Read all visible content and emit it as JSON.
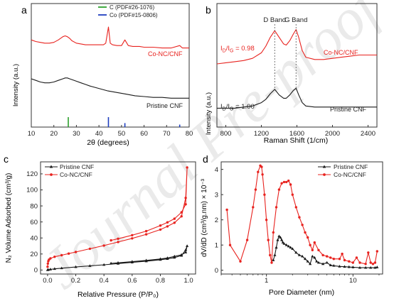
{
  "figure": {
    "watermark": "Journal Pre-proof"
  },
  "chart_data": [
    {
      "panel": "a",
      "type": "line",
      "xlabel": "2θ (degrees)",
      "ylabel": "Intensity (a.u.)",
      "xlim": [
        10,
        80
      ],
      "xticks": [
        10,
        20,
        30,
        40,
        50,
        60,
        70,
        80
      ],
      "y_ticks_shown": false,
      "legend": {
        "placement": "top-center",
        "entries": [
          {
            "label": "C  (PDF#26-1076)",
            "color": "#2ca02c"
          },
          {
            "label": "Co (PDF#15-0806)",
            "color": "#1f3fbf"
          }
        ]
      },
      "series": [
        {
          "name": "Co-NC/CNF",
          "color": "#e8231f",
          "x": [
            10,
            12,
            14,
            16,
            18,
            20,
            22,
            24,
            25,
            26,
            27,
            28,
            30,
            32,
            34,
            36,
            38,
            40,
            42,
            43,
            44.2,
            45,
            46,
            48,
            50,
            51.5,
            53,
            55,
            58,
            60,
            64,
            68,
            72,
            75.8,
            77,
            80
          ],
          "y": [
            0.84,
            0.82,
            0.81,
            0.8,
            0.8,
            0.81,
            0.84,
            0.88,
            0.89,
            0.88,
            0.86,
            0.83,
            0.8,
            0.79,
            0.78,
            0.78,
            0.78,
            0.78,
            0.78,
            0.8,
            1.0,
            0.8,
            0.78,
            0.77,
            0.77,
            0.84,
            0.77,
            0.76,
            0.76,
            0.75,
            0.75,
            0.74,
            0.74,
            0.77,
            0.74,
            0.74
          ]
        },
        {
          "name": "Pristine CNF",
          "color": "#1a1a1a",
          "x": [
            10,
            12,
            14,
            16,
            18,
            20,
            22,
            24,
            25,
            26,
            27,
            28,
            30,
            32,
            34,
            36,
            40,
            44,
            48,
            52,
            56,
            60,
            64,
            68,
            72,
            76,
            80
          ],
          "y": [
            0.36,
            0.34,
            0.32,
            0.31,
            0.31,
            0.32,
            0.34,
            0.36,
            0.37,
            0.37,
            0.36,
            0.35,
            0.33,
            0.31,
            0.29,
            0.27,
            0.24,
            0.21,
            0.19,
            0.17,
            0.15,
            0.14,
            0.13,
            0.13,
            0.12,
            0.12,
            0.12
          ]
        }
      ],
      "reference_lines": [
        {
          "name": "C",
          "color": "#2ca02c",
          "x": [
            26.4
          ],
          "height": [
            1.0
          ]
        },
        {
          "name": "Co",
          "color": "#1f3fbf",
          "x": [
            44.2,
            51.5,
            75.8
          ],
          "height": [
            1.0,
            0.4,
            0.25
          ]
        }
      ]
    },
    {
      "panel": "b",
      "type": "line",
      "xlabel": "Raman Shift (1/cm)",
      "ylabel": "Intensity (a.u.)",
      "xlim": [
        700,
        2500
      ],
      "xticks": [
        800,
        1200,
        1600,
        2000,
        2400
      ],
      "y_ticks_shown": false,
      "band_labels": [
        {
          "text": "D Band",
          "x": 1350
        },
        {
          "text": "G Band",
          "x": 1590
        }
      ],
      "ratios": [
        {
          "series": "Co-NC/CNF",
          "base": "I",
          "sub1": "D",
          "mid": "/I",
          "sub2": "G",
          "value": "= 0.98"
        },
        {
          "series": "Pristine CNF",
          "base": "I",
          "sub1": "D",
          "mid": "/I",
          "sub2": "G",
          "value": "= 1.00"
        }
      ],
      "series": [
        {
          "name": "Co-NC/CNF",
          "color": "#e8231f",
          "x": [
            700,
            800,
            900,
            1000,
            1100,
            1200,
            1250,
            1300,
            1350,
            1400,
            1450,
            1480,
            1520,
            1560,
            1590,
            1620,
            1660,
            1700,
            1800,
            1900,
            2000,
            2100,
            2200,
            2300,
            2400,
            2500
          ],
          "y": [
            0.5,
            0.51,
            0.52,
            0.53,
            0.55,
            0.6,
            0.66,
            0.74,
            0.8,
            0.74,
            0.68,
            0.67,
            0.71,
            0.77,
            0.81,
            0.74,
            0.62,
            0.56,
            0.54,
            0.54,
            0.55,
            0.56,
            0.57,
            0.58,
            0.58,
            0.58
          ]
        },
        {
          "name": "Pristine CNF",
          "color": "#1a1a1a",
          "x": [
            700,
            800,
            900,
            1000,
            1100,
            1200,
            1250,
            1300,
            1350,
            1400,
            1450,
            1480,
            1520,
            1560,
            1590,
            1620,
            1660,
            1700,
            1800,
            1900,
            2000,
            2100,
            2200,
            2300,
            2400,
            2500
          ],
          "y": [
            0.1,
            0.1,
            0.1,
            0.11,
            0.12,
            0.15,
            0.18,
            0.23,
            0.27,
            0.22,
            0.19,
            0.19,
            0.22,
            0.26,
            0.28,
            0.22,
            0.15,
            0.12,
            0.11,
            0.11,
            0.11,
            0.11,
            0.11,
            0.11,
            0.11,
            0.11
          ]
        }
      ]
    },
    {
      "panel": "c",
      "type": "line",
      "xlabel": "Relative Pressure (P/P₀)",
      "ylabel": "N₂ Volume Adsorbed (cm³/g)",
      "xlim": [
        -0.05,
        1.05
      ],
      "ylim": [
        -5,
        135
      ],
      "xticks": [
        0.0,
        0.2,
        0.4,
        0.6,
        0.8,
        1.0
      ],
      "yticks": [
        0,
        20,
        40,
        60,
        80,
        100,
        120
      ],
      "legend": {
        "placement": "top-left"
      },
      "series": [
        {
          "name": "Pristine CNF",
          "color": "#1a1a1a",
          "x": [
            0.0,
            0.005,
            0.02,
            0.05,
            0.1,
            0.2,
            0.3,
            0.4,
            0.5,
            0.6,
            0.7,
            0.8,
            0.85,
            0.9,
            0.95,
            0.98,
            0.99,
            0.98,
            0.95,
            0.9,
            0.85,
            0.8,
            0.7,
            0.6,
            0.5,
            0.45
          ],
          "y": [
            0,
            0.3,
            0.8,
            1.5,
            2.3,
            3.8,
            5.2,
            6.5,
            8.0,
            9.5,
            11.0,
            12.8,
            14.0,
            15.5,
            18.0,
            25.0,
            30.0,
            22.0,
            19.0,
            17.0,
            15.0,
            13.8,
            12.0,
            10.5,
            9.0,
            8.3
          ]
        },
        {
          "name": "Co-NC/CNF",
          "color": "#e8231f",
          "x": [
            0.0,
            0.002,
            0.005,
            0.01,
            0.02,
            0.05,
            0.1,
            0.15,
            0.2,
            0.3,
            0.4,
            0.5,
            0.6,
            0.7,
            0.8,
            0.85,
            0.9,
            0.95,
            0.98,
            0.99,
            0.98,
            0.95,
            0.9,
            0.85,
            0.8,
            0.7,
            0.6,
            0.5,
            0.45
          ],
          "y": [
            4,
            8,
            11,
            13,
            14.5,
            16.5,
            18.5,
            20.5,
            22.5,
            26.5,
            30.5,
            35.0,
            39.5,
            44.5,
            50.5,
            54.5,
            59.0,
            67.0,
            90.0,
            128.0,
            82.0,
            72.0,
            64.0,
            59.5,
            55.5,
            48.5,
            43.5,
            39.0,
            37.0
          ]
        }
      ]
    },
    {
      "panel": "d",
      "type": "line",
      "xlabel": "Pore Diameter (nm)",
      "ylabel": "dV/dD (cm³/g.nm) × 10⁻³",
      "xscale": "log",
      "xlim": [
        0.3,
        22
      ],
      "ylim": [
        -0.15,
        4.3
      ],
      "xticks": [
        1,
        10
      ],
      "yticks": [
        0,
        1,
        2,
        3,
        4
      ],
      "legend": {
        "placement": "top-right"
      },
      "series": [
        {
          "name": "Pristine CNF",
          "color": "#1a1a1a",
          "x": [
            1.2,
            1.25,
            1.3,
            1.35,
            1.4,
            1.45,
            1.5,
            1.55,
            1.6,
            1.7,
            1.8,
            1.9,
            2.0,
            2.2,
            2.4,
            2.6,
            2.8,
            3.0,
            3.2,
            3.4,
            3.6,
            3.8,
            4.0,
            4.5,
            5.0,
            5.5,
            6.0,
            7.0,
            8.0,
            9.0,
            10.0,
            12.0,
            14.0,
            16.0,
            18.0,
            19.0
          ],
          "y": [
            0.4,
            0.6,
            0.9,
            1.2,
            1.35,
            1.3,
            1.2,
            1.1,
            1.05,
            1.0,
            0.95,
            0.9,
            0.85,
            0.7,
            0.6,
            0.55,
            0.45,
            0.35,
            0.25,
            0.55,
            0.5,
            0.35,
            0.3,
            0.25,
            0.3,
            0.2,
            0.18,
            0.15,
            0.14,
            0.13,
            0.12,
            0.1,
            0.1,
            0.1,
            0.1,
            0.12
          ]
        },
        {
          "name": "Co-NC/CNF",
          "color": "#e8231f",
          "x": [
            0.35,
            0.38,
            0.5,
            0.6,
            0.7,
            0.75,
            0.8,
            0.85,
            0.88,
            0.9,
            0.95,
            1.0,
            1.05,
            1.1,
            1.15,
            1.2,
            1.3,
            1.4,
            1.5,
            1.6,
            1.7,
            1.8,
            1.9,
            2.0,
            2.2,
            2.4,
            2.6,
            2.8,
            3.0,
            3.2,
            3.4,
            3.6,
            4.0,
            4.5,
            5.0,
            5.5,
            6.0,
            7.0,
            7.5,
            8.0,
            9.0,
            10.0,
            11.0,
            12.0,
            14.0,
            15.0,
            16.0,
            17.0,
            18.0,
            19.0
          ],
          "y": [
            2.4,
            1.0,
            0.35,
            1.2,
            2.5,
            3.2,
            3.9,
            4.15,
            4.1,
            3.8,
            3.0,
            2.0,
            1.2,
            0.6,
            0.3,
            1.5,
            2.5,
            3.2,
            3.45,
            3.5,
            3.5,
            3.55,
            3.4,
            3.0,
            2.5,
            2.1,
            1.8,
            1.5,
            1.3,
            1.0,
            0.8,
            1.1,
            0.8,
            0.6,
            0.55,
            0.5,
            0.45,
            0.45,
            0.65,
            0.4,
            0.35,
            0.3,
            0.5,
            0.3,
            0.25,
            0.7,
            0.3,
            0.25,
            0.3,
            0.75
          ]
        }
      ]
    }
  ]
}
